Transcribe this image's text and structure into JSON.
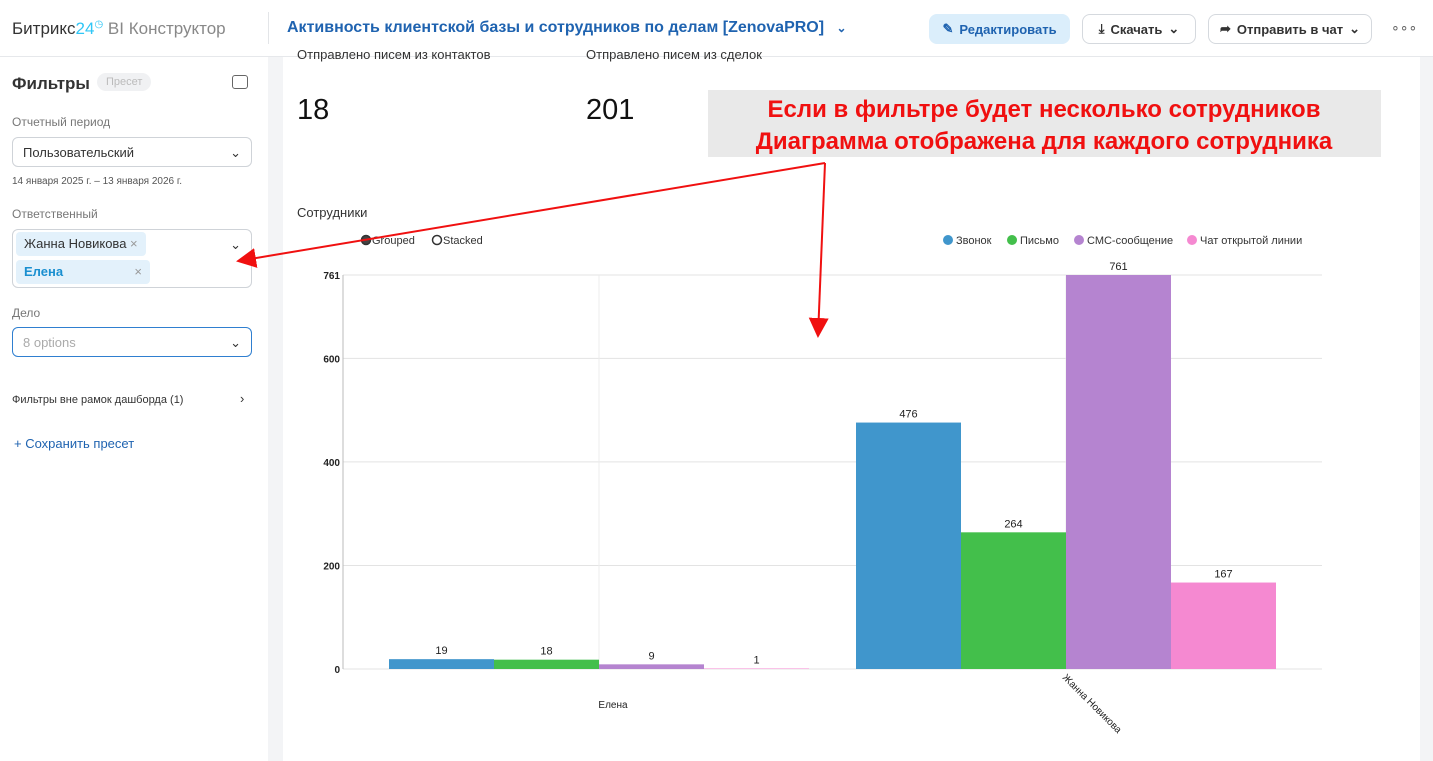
{
  "header": {
    "brand": "Битрикс",
    "brand_number": "24",
    "product": "BI Конструктор",
    "title": "Активность клиентской базы и сотрудников по делам [ZenovaPRO]",
    "buttons": [
      "Редактировать",
      "Скачать",
      "Отправить в чат"
    ]
  },
  "sidebar": {
    "title": "Фильтры",
    "preset_badge": "Пресет",
    "period_label": "Отчетный период",
    "period_value": "Пользовательский",
    "period_range": "14 января 2025 г. – 13 января 2026 г.",
    "responsible_label": "Ответственный",
    "responsible_tags": [
      "Жанна Новикова",
      "Елена"
    ],
    "deal_label": "Дело",
    "deal_placeholder": "8 options",
    "outside_filters": "Фильтры вне рамок дашборда (1)",
    "save_preset": "+ Сохранить пресет"
  },
  "kpis": [
    {
      "label": "Отправлено писем из контактов",
      "value": 18
    },
    {
      "label": "Отправлено писем из сделок",
      "value": 201
    }
  ],
  "annotation": {
    "lines": [
      "Если в фильтре будет несколько сотрудников",
      "Диаграмма отображена для каждого сотрудника"
    ]
  },
  "chart_data": {
    "type": "bar",
    "title": "Сотрудники",
    "modes": [
      "Grouped",
      "Stacked"
    ],
    "categories": [
      "Елена",
      "Жанна Новикова"
    ],
    "series": [
      {
        "name": "Звонок",
        "color": "#4096cc",
        "values": [
          19,
          476
        ]
      },
      {
        "name": "Письмо",
        "color": "#43bf4b",
        "values": [
          18,
          264
        ]
      },
      {
        "name": "СМС-сообщение",
        "color": "#b584d0",
        "values": [
          9,
          761
        ]
      },
      {
        "name": "Чат открытой линии",
        "color": "#f589d1",
        "values": [
          1,
          167
        ]
      }
    ],
    "ylim": [
      0,
      761
    ],
    "yticks": [
      0,
      200,
      400,
      600,
      761
    ],
    "grid": true
  }
}
